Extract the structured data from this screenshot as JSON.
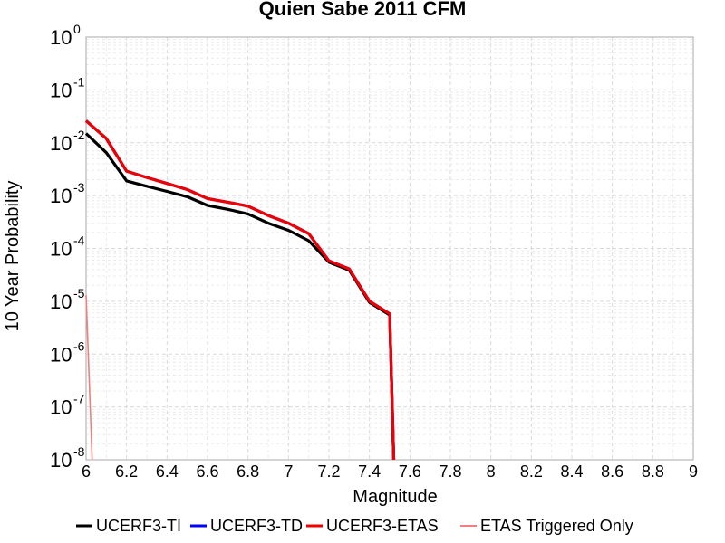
{
  "chart_data": {
    "type": "line",
    "title": "Quien Sabe 2011 CFM",
    "xlabel": "Magnitude",
    "ylabel": "10 Year Probability",
    "xlim": [
      6,
      9
    ],
    "ylim": [
      1e-08,
      1
    ],
    "yscale": "log",
    "grid": true,
    "legend_position": "bottom",
    "x_ticks": [
      "6",
      "6.2",
      "6.4",
      "6.6",
      "6.8",
      "7",
      "7.2",
      "7.4",
      "7.6",
      "7.8",
      "8",
      "8.2",
      "8.4",
      "8.6",
      "8.8",
      "9"
    ],
    "y_tick_exponents": [
      "0",
      "-1",
      "-2",
      "-3",
      "-4",
      "-5",
      "-6",
      "-7",
      "-8"
    ],
    "y_tick_base": "10",
    "series": [
      {
        "name": "UCERF3-TI",
        "color": "#000000",
        "x": [
          6.0,
          6.1,
          6.2,
          6.3,
          6.4,
          6.5,
          6.6,
          6.7,
          6.8,
          6.9,
          7.0,
          7.1,
          7.2,
          7.3,
          7.4,
          7.5,
          7.52
        ],
        "y": [
          0.015,
          0.0065,
          0.0019,
          0.0015,
          0.0012,
          0.00095,
          0.00065,
          0.00055,
          0.00045,
          0.0003,
          0.00022,
          0.00014,
          5.5e-05,
          3.9e-05,
          9.5e-06,
          5.5e-06,
          1e-08
        ]
      },
      {
        "name": "UCERF3-TD",
        "color": "#0000ff",
        "x": [
          6.0,
          6.1,
          6.2,
          6.3,
          6.4,
          6.5,
          6.6,
          6.7,
          6.8,
          6.9,
          7.0,
          7.1,
          7.2,
          7.3,
          7.4,
          7.5,
          7.52
        ],
        "y": [
          0.026,
          0.012,
          0.0029,
          0.0022,
          0.0017,
          0.0013,
          0.00088,
          0.00075,
          0.00063,
          0.00042,
          0.0003,
          0.00019,
          5.8e-05,
          4.1e-05,
          1e-05,
          5.8e-06,
          1e-08
        ]
      },
      {
        "name": "UCERF3-ETAS",
        "color": "#ee0000",
        "x": [
          6.0,
          6.1,
          6.2,
          6.3,
          6.4,
          6.5,
          6.6,
          6.7,
          6.8,
          6.9,
          7.0,
          7.1,
          7.2,
          7.3,
          7.4,
          7.5,
          7.52
        ],
        "y": [
          0.026,
          0.012,
          0.0029,
          0.0022,
          0.0017,
          0.0013,
          0.00088,
          0.00075,
          0.00063,
          0.00042,
          0.0003,
          0.00019,
          5.8e-05,
          4.1e-05,
          1e-05,
          5.8e-06,
          1e-08
        ]
      },
      {
        "name": "ETAS Triggered Only",
        "color": "#f08080",
        "x": [
          6.0,
          6.03
        ],
        "y": [
          1.3e-05,
          1e-08
        ]
      }
    ]
  }
}
